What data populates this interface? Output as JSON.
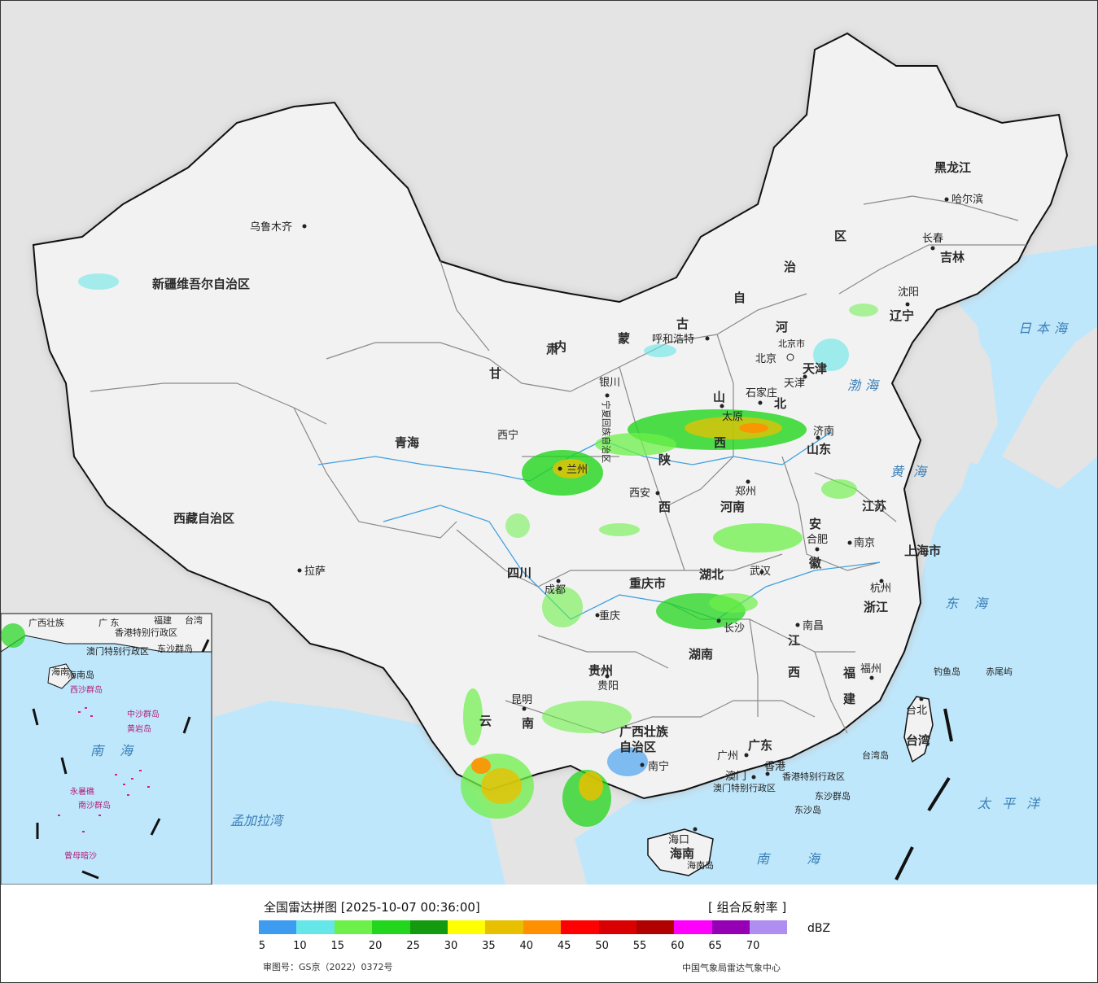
{
  "header": {
    "title": "全国雷达拼图 [2025-10-07 00:36:00]",
    "product": "[ 组合反射率 ]",
    "unit": "dBZ"
  },
  "legend": {
    "ticks": [
      "5",
      "10",
      "15",
      "20",
      "25",
      "30",
      "35",
      "40",
      "45",
      "50",
      "55",
      "60",
      "65",
      "70"
    ],
    "colors": [
      "#3e9cf0",
      "#65e6e8",
      "#6df04a",
      "#21d61c",
      "#139a0f",
      "#ffff00",
      "#e8c000",
      "#ff9000",
      "#ff0000",
      "#d80000",
      "#b00000",
      "#ff00ff",
      "#9600b4",
      "#ae8ef0"
    ]
  },
  "footer": {
    "approval": "审图号：GS京（2022）0372号",
    "credit": "中国气象局雷达气象中心"
  },
  "map": {
    "colors": {
      "land": "#f1f1f1",
      "sea": "#bfe7fb",
      "foreign": "#e3e3e3",
      "border": "#111111",
      "provinceLine": "#8a8a8a",
      "river": "#3fa0e0"
    },
    "provinces": [
      {
        "name": "新疆维吾尔自治区"
      },
      {
        "name": "西藏自治区"
      },
      {
        "name": "青海"
      },
      {
        "name": "西宁"
      },
      {
        "name": "甘"
      },
      {
        "name": "肃"
      },
      {
        "name": "内"
      },
      {
        "name": "蒙"
      },
      {
        "name": "古"
      },
      {
        "name": "自"
      },
      {
        "name": "治"
      },
      {
        "name": "区"
      },
      {
        "name": "黑龙江"
      },
      {
        "name": "吉林"
      },
      {
        "name": "辽宁"
      },
      {
        "name": "河"
      },
      {
        "name": "北"
      },
      {
        "name": "山"
      },
      {
        "name": "西"
      },
      {
        "name": "山东"
      },
      {
        "name": "陕"
      },
      {
        "name": "西"
      },
      {
        "name": "河南"
      },
      {
        "name": "江苏"
      },
      {
        "name": "安"
      },
      {
        "name": "徽"
      },
      {
        "name": "上海市"
      },
      {
        "name": "浙江"
      },
      {
        "name": "湖北"
      },
      {
        "name": "重庆市"
      },
      {
        "name": "四川"
      },
      {
        "name": "湖南"
      },
      {
        "name": "江"
      },
      {
        "name": "西"
      },
      {
        "name": "福"
      },
      {
        "name": "建"
      },
      {
        "name": "贵州"
      },
      {
        "name": "云"
      },
      {
        "name": "南"
      },
      {
        "name": "广西壮族"
      },
      {
        "name": "自治区"
      },
      {
        "name": "广东"
      },
      {
        "name": "海南"
      },
      {
        "name": "台湾"
      },
      {
        "name": "宁夏回族自治区"
      },
      {
        "name": "天津"
      },
      {
        "name": "北京市"
      },
      {
        "name": "香港特别行政区"
      },
      {
        "name": "澳门特别行政区"
      }
    ],
    "cities": [
      {
        "name": "乌鲁木齐"
      },
      {
        "name": "拉萨"
      },
      {
        "name": "兰州"
      },
      {
        "name": "银川"
      },
      {
        "name": "呼和浩特"
      },
      {
        "name": "北京"
      },
      {
        "name": "天津"
      },
      {
        "name": "石家庄"
      },
      {
        "name": "济南"
      },
      {
        "name": "太原"
      },
      {
        "name": "西安"
      },
      {
        "name": "郑州"
      },
      {
        "name": "合肥"
      },
      {
        "name": "南京"
      },
      {
        "name": "杭州"
      },
      {
        "name": "武汉"
      },
      {
        "name": "成都"
      },
      {
        "name": "重庆"
      },
      {
        "name": "长沙"
      },
      {
        "name": "南昌"
      },
      {
        "name": "福州"
      },
      {
        "name": "贵阳"
      },
      {
        "name": "昆明"
      },
      {
        "name": "南宁"
      },
      {
        "name": "广州"
      },
      {
        "name": "澳门"
      },
      {
        "name": "香港"
      },
      {
        "name": "海口"
      },
      {
        "name": "台北"
      },
      {
        "name": "沈阳"
      },
      {
        "name": "长春"
      },
      {
        "name": "哈尔滨"
      }
    ],
    "seas": [
      {
        "name": "日本海"
      },
      {
        "name": "渤海"
      },
      {
        "name": "黄海"
      },
      {
        "name": "东海"
      },
      {
        "name": "南海"
      },
      {
        "name": "太平洋"
      },
      {
        "name": "孟加拉湾"
      }
    ],
    "islands": [
      {
        "name": "钓鱼岛"
      },
      {
        "name": "赤尾屿"
      },
      {
        "name": "台湾岛"
      },
      {
        "name": "东沙群岛"
      },
      {
        "name": "东沙岛"
      },
      {
        "name": "海南岛"
      }
    ],
    "inset": {
      "labels": [
        "广西壮族",
        "广 东",
        "福建",
        "台湾",
        "海南",
        "香港特别行政区",
        "澳门特别行政区",
        "东沙群岛",
        "海南岛",
        "西沙群岛",
        "中沙群岛",
        "黄岩岛",
        "南海",
        "永暑礁",
        "南沙群岛",
        "曾母暗沙"
      ]
    }
  }
}
